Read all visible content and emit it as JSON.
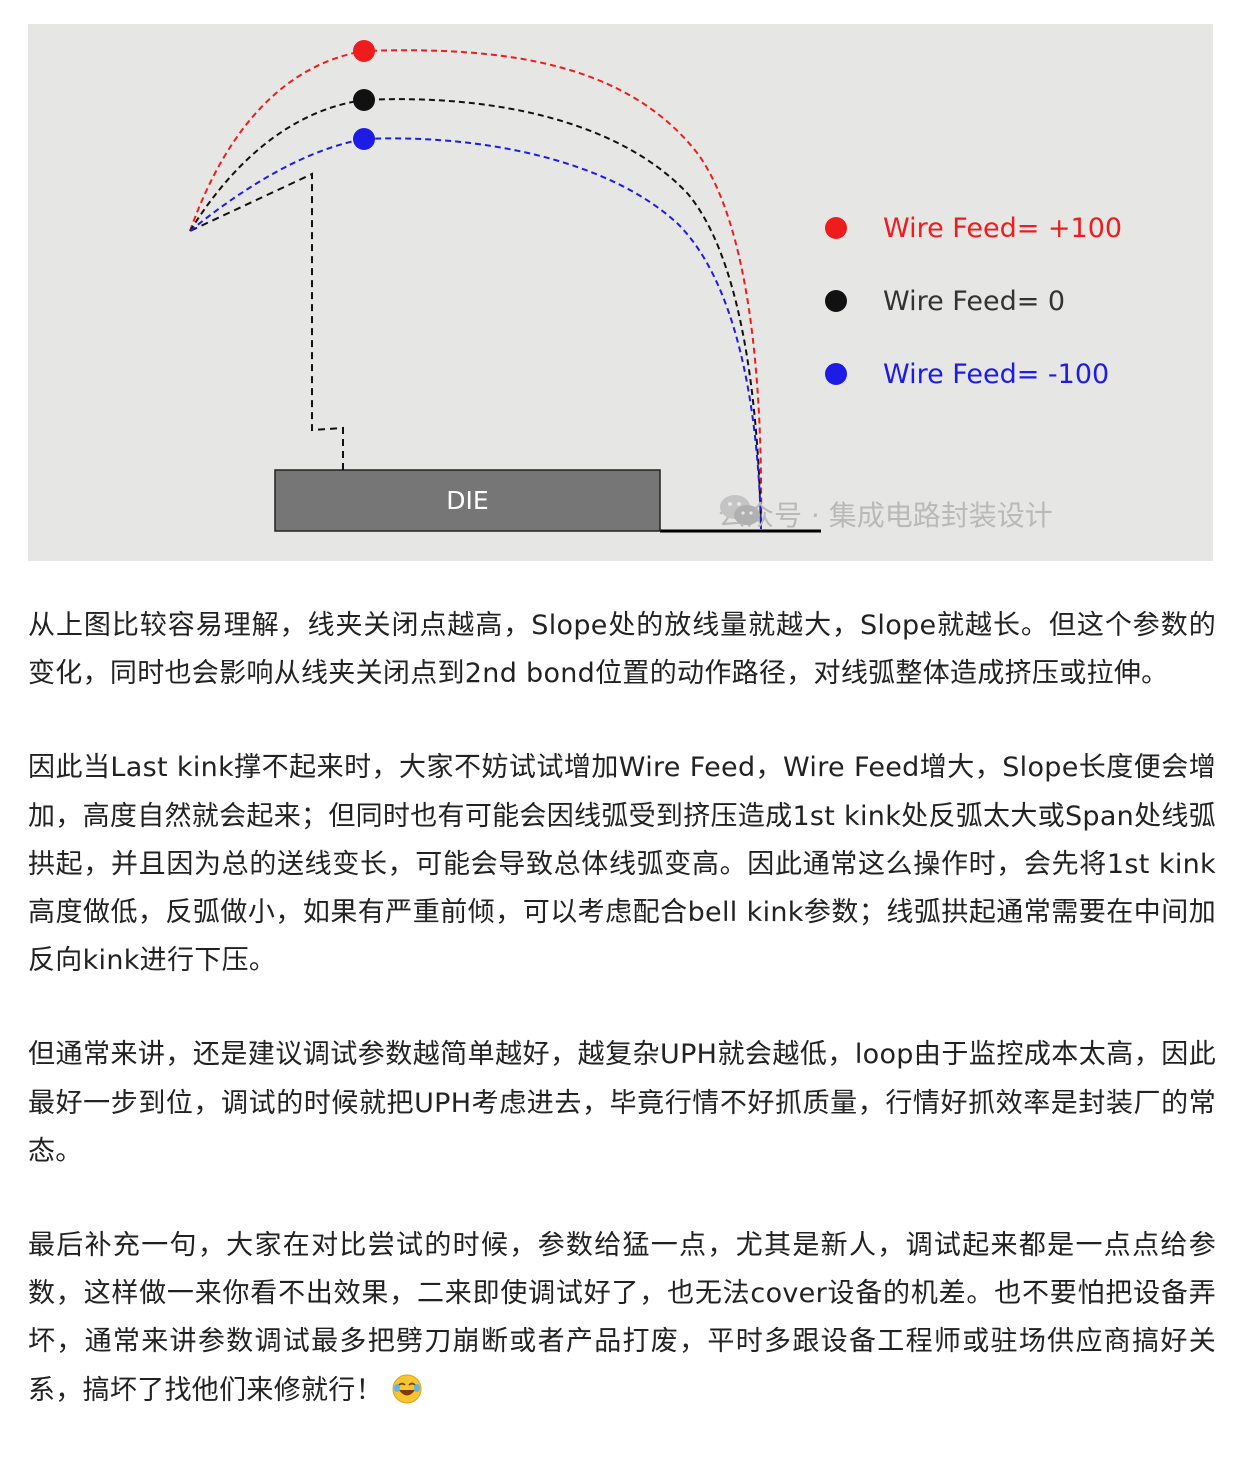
{
  "figure": {
    "die_label": "DIE",
    "legend": [
      {
        "label": "Wire Feed= +100",
        "color": "#ee1c1c"
      },
      {
        "label": "Wire Feed= 0",
        "color": "#111111"
      },
      {
        "label": "Wire Feed= -100",
        "color": "#1c1ce6"
      }
    ],
    "watermark": "公众号 · 集成电路封装设计",
    "watermark_icon": "wechat-icon"
  },
  "article": {
    "paragraphs": [
      "从上图比较容易理解，线夹关闭点越高，Slope处的放线量就越大，Slope就越长。但这个参数的变化，同时也会影响从线夹关闭点到2nd bond位置的动作路径，对线弧整体造成挤压或拉伸。",
      "因此当Last kink撑不起来时，大家不妨试试增加Wire Feed，Wire Feed增大，Slope长度便会增加，高度自然就会起来；但同时也有可能会因线弧受到挤压造成1st kink处反弧太大或Span处线弧拱起，并且因为总的送线变长，可能会导致总体线弧变高。因此通常这么操作时，会先将1st kink高度做低，反弧做小，如果有严重前倾，可以考虑配合bell kink参数；线弧拱起通常需要在中间加反向kink进行下压。",
      "但通常来讲，还是建议调试参数越简单越好，越复杂UPH就会越低，loop由于监控成本太高，因此最好一步到位，调试的时候就把UPH考虑进去，毕竟行情不好抓质量，行情好抓效率是封装厂的常态。",
      "最后补充一句，大家在对比尝试的时候，参数给猛一点，尤其是新人，调试起来都是一点点给参数，这样做一来你看不出效果，二来即使调试好了，也无法cover设备的机差。也不要怕把设备弄坏，通常来讲参数调试最多把劈刀崩断或者产品打废，平时多跟设备工程师或驻场供应商搞好关系，搞坏了找他们来修就行！"
    ],
    "end_icon": "laughing-tears-emoji-icon"
  }
}
